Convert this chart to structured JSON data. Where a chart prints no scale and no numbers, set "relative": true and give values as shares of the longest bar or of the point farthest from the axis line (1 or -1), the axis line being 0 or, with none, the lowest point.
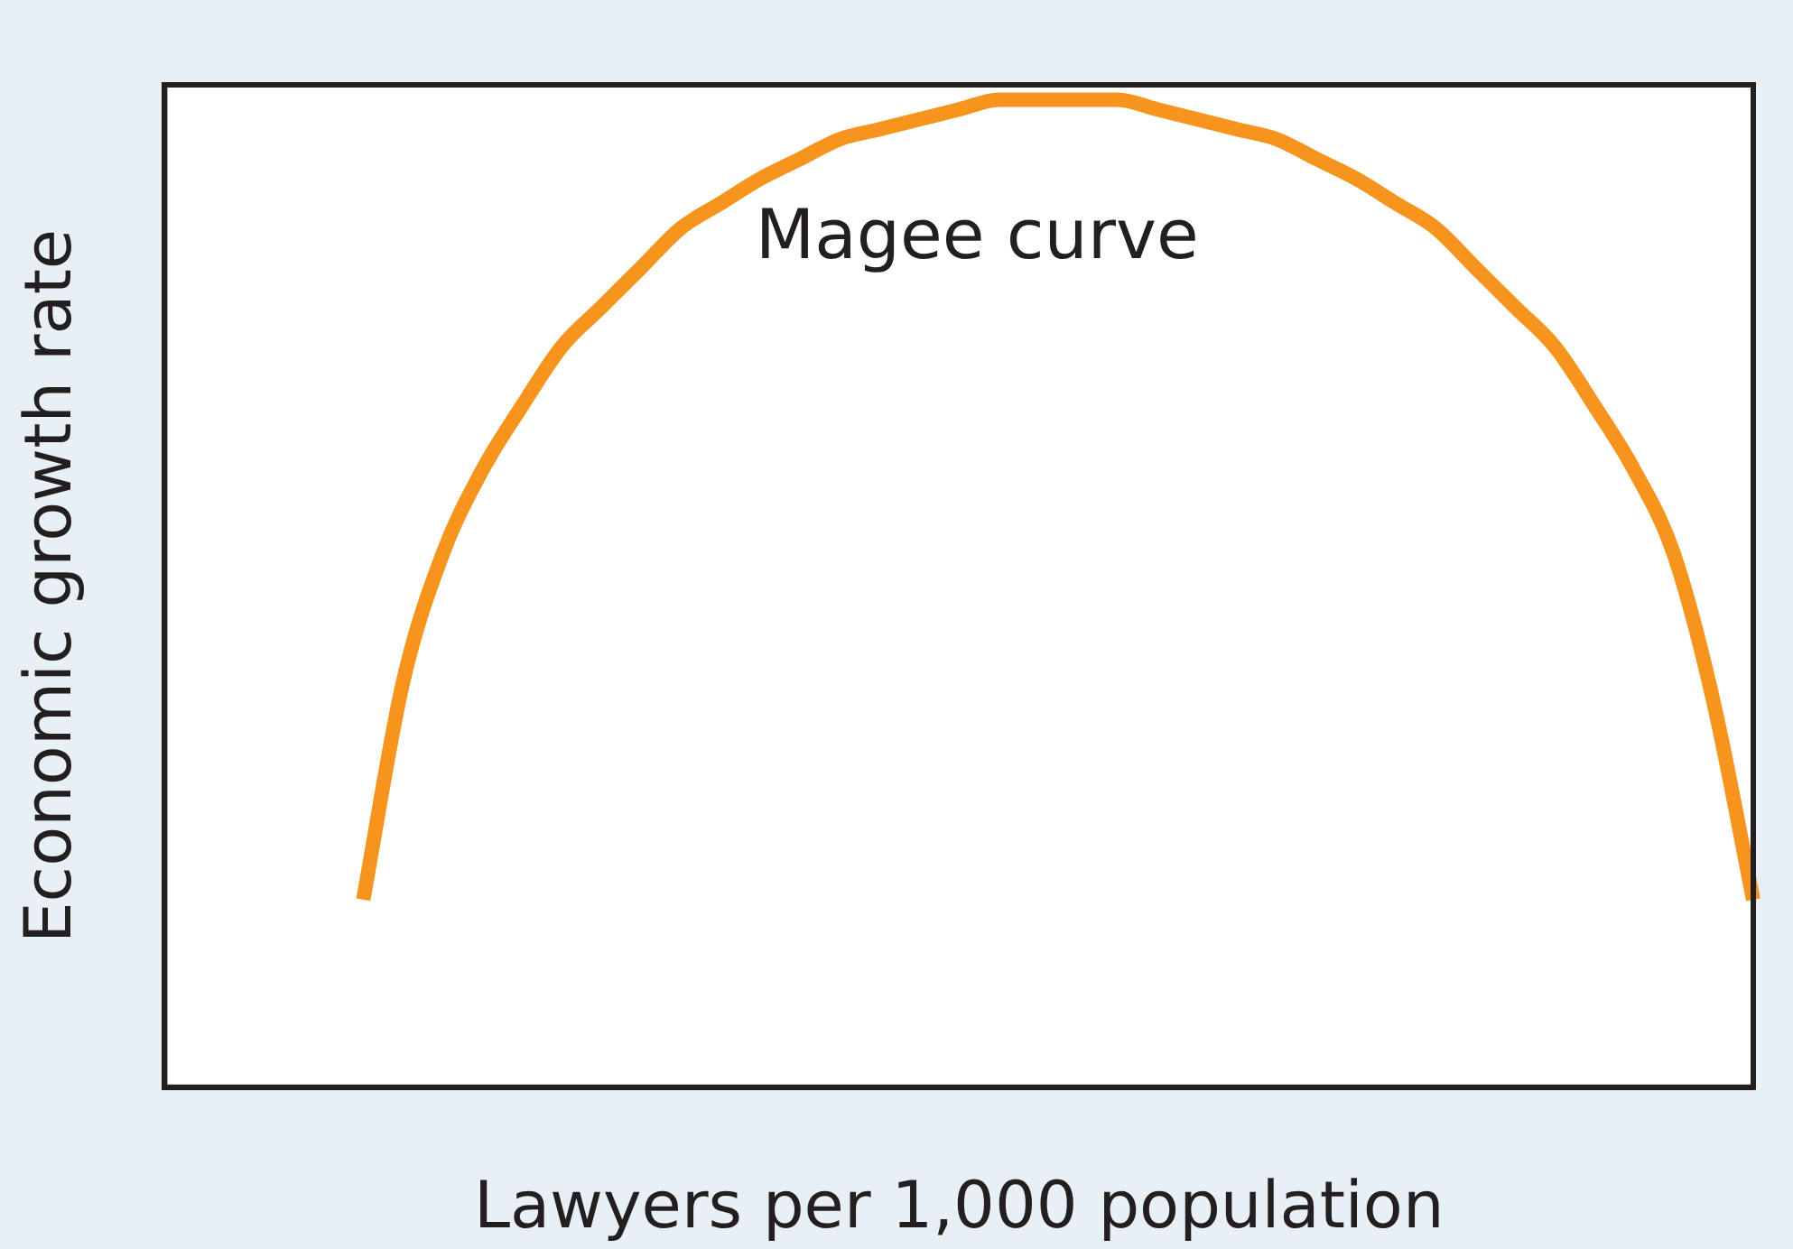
{
  "chart_data": {
    "type": "line",
    "relative": true,
    "xlabel": "Lawyers per 1,000 population",
    "ylabel": "Economic growth rate",
    "annotations": [
      "Magee curve"
    ],
    "marker": "none",
    "line_style": "solid",
    "color": "#f7941d",
    "categories": [
      null,
      null,
      null,
      null,
      null,
      null,
      null,
      null,
      null,
      null,
      null,
      null,
      null,
      null,
      null,
      null,
      null,
      null,
      null,
      null,
      null,
      null,
      null,
      null,
      null,
      null,
      null,
      null,
      null,
      null,
      null,
      null,
      null,
      null,
      null,
      null,
      null,
      null,
      null,
      null,
      null
    ],
    "values": [
      null,
      null,
      null,
      null,
      null,
      0.19,
      0.41,
      0.54,
      0.625,
      0.69,
      0.75,
      0.79,
      0.83,
      0.87,
      0.895,
      0.92,
      0.94,
      0.96,
      0.97,
      0.98,
      0.99,
      1,
      1,
      1,
      1,
      0.99,
      0.98,
      0.97,
      0.96,
      0.94,
      0.92,
      0.895,
      0.87,
      0.83,
      0.79,
      0.75,
      0.69,
      0.625,
      0.54,
      0.39,
      0.19
    ]
  }
}
